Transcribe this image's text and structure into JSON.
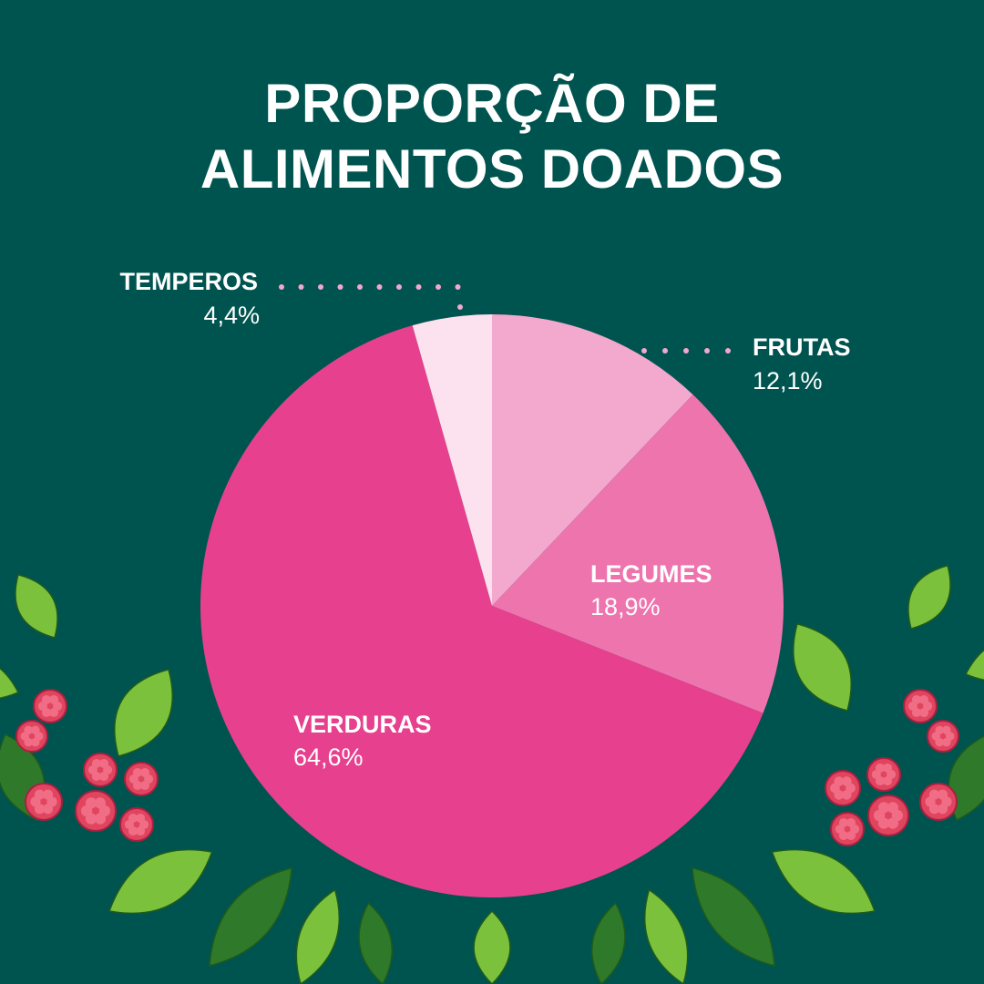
{
  "title": {
    "line1": "PROPORÇÃO DE",
    "line2": "ALIMENTOS DOADOS"
  },
  "colors": {
    "background": "#00544F",
    "leaf_dark": "#2f7a2a",
    "leaf_light": "#7cc13c",
    "berry": "#e0445f"
  },
  "chart_data": {
    "type": "pie",
    "title": "PROPORÇÃO DE ALIMENTOS DOADOS",
    "slices": [
      {
        "label": "FRUTAS",
        "value_label": "12,1%",
        "value": 12.1,
        "color": "#F3A8CE"
      },
      {
        "label": "LEGUMES",
        "value_label": "18,9%",
        "value": 18.9,
        "color": "#EE74AE"
      },
      {
        "label": "VERDURAS",
        "value_label": "64,6%",
        "value": 64.6,
        "color": "#E6408E"
      },
      {
        "label": "TEMPEROS",
        "value_label": "4,4%",
        "value": 4.4,
        "color": "#FCE1EE"
      }
    ]
  }
}
